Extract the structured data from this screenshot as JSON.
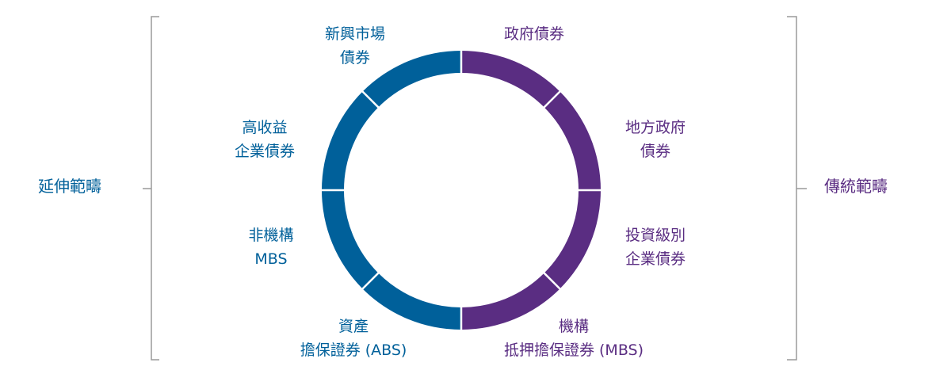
{
  "colors": {
    "extended": "#00609a",
    "traditional": "#5a2d82",
    "bracket": "#9a9a9a",
    "divider": "#ffffff"
  },
  "left_group": {
    "label": "延伸範疇"
  },
  "right_group": {
    "label": "傳統範疇"
  },
  "segments": [
    {
      "group": "traditional",
      "lines": [
        "政府債券"
      ]
    },
    {
      "group": "traditional",
      "lines": [
        "地方政府",
        "債券"
      ]
    },
    {
      "group": "traditional",
      "lines": [
        "投資級別",
        "企業債券"
      ]
    },
    {
      "group": "traditional",
      "lines": [
        "機構",
        "抵押擔保證券 (MBS)"
      ]
    },
    {
      "group": "extended",
      "lines": [
        "資產",
        "擔保證券 (ABS)"
      ]
    },
    {
      "group": "extended",
      "lines": [
        "非機構",
        "MBS"
      ]
    },
    {
      "group": "extended",
      "lines": [
        "高收益",
        "企業債券"
      ]
    },
    {
      "group": "extended",
      "lines": [
        "新興市場",
        "債券"
      ]
    }
  ]
}
